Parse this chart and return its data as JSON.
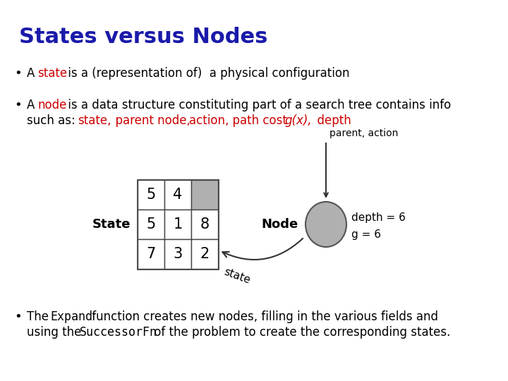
{
  "title": "States versus Nodes",
  "title_color": "#1a1aaa",
  "background_color": "#ffffff",
  "bullet1_text_parts": [
    {
      "text": "A ",
      "color": "#000000",
      "bold": false
    },
    {
      "text": "state",
      "color": "#cc0000",
      "bold": false
    },
    {
      "text": " is a (representation of)  a physical configuration",
      "color": "#000000",
      "bold": false
    }
  ],
  "bullet2_line1_parts": [
    {
      "text": "A ",
      "color": "#000000",
      "bold": false
    },
    {
      "text": "node",
      "color": "#cc0000",
      "bold": false
    },
    {
      "text": " is a data structure constituting part of a search tree contains info",
      "color": "#000000",
      "bold": false
    }
  ],
  "bullet2_line2_parts": [
    {
      "text": "such as:  ",
      "color": "#000000",
      "bold": false
    },
    {
      "text": "state,",
      "color": "#cc0000",
      "bold": false
    },
    {
      "text": "  parent node,  ",
      "color": "#cc0000",
      "bold": false
    },
    {
      "text": "action,",
      "color": "#cc0000",
      "bold": false
    },
    {
      "text": "  path cost ",
      "color": "#cc0000",
      "bold": false
    },
    {
      "text": "g(x),",
      "color": "#cc0000",
      "bold": true
    },
    {
      "text": "  depth",
      "color": "#cc0000",
      "bold": false
    }
  ],
  "bullet3_line1_parts": [
    {
      "text": "The ",
      "color": "#000000",
      "bold": false
    },
    {
      "text": "Expand",
      "color": "#000000",
      "bold": false,
      "mono": true
    },
    {
      "text": " function creates new nodes, filling in the various fields and",
      "color": "#000000",
      "bold": false
    }
  ],
  "bullet3_line2_parts": [
    {
      "text": "using the ",
      "color": "#000000",
      "bold": false
    },
    {
      "text": "SuccessorFn",
      "color": "#000000",
      "bold": false,
      "mono": true
    },
    {
      "text": " of the problem to create the corresponding states.",
      "color": "#000000",
      "bold": false
    }
  ],
  "grid_values": [
    [
      "5",
      "4",
      ""
    ],
    [
      "5",
      "1",
      "8"
    ],
    [
      "7",
      "3",
      "2"
    ]
  ],
  "grid_gray_cells": [
    [
      0,
      2
    ]
  ],
  "state_label": "State",
  "node_label": "Node",
  "node_circle_color": "#b0b0b0",
  "depth_text": "depth = 6",
  "g_text": "g = 6",
  "parent_action_text": "parent, action",
  "state_arrow_text": "state"
}
